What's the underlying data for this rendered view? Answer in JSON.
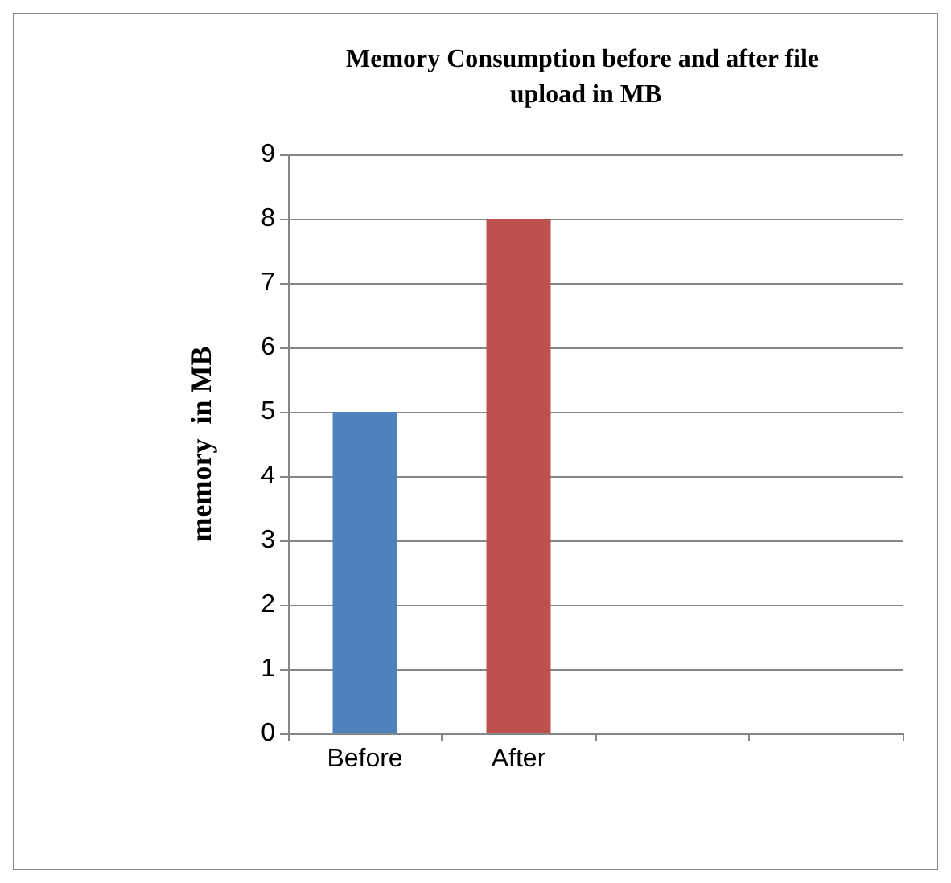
{
  "chart_data": {
    "type": "bar",
    "title": "Memory Consumption before and after file upload in MB",
    "ylabel": "memory  in MB",
    "categories": [
      "Before",
      "After",
      null,
      null
    ],
    "values": [
      5,
      8,
      null,
      null
    ],
    "colors": [
      "#4f81bd",
      "#c0504d",
      null,
      null
    ],
    "ylim": [
      0,
      9
    ],
    "yticks": [
      0,
      1,
      2,
      3,
      4,
      5,
      6,
      7,
      8,
      9
    ],
    "grid": "y"
  }
}
